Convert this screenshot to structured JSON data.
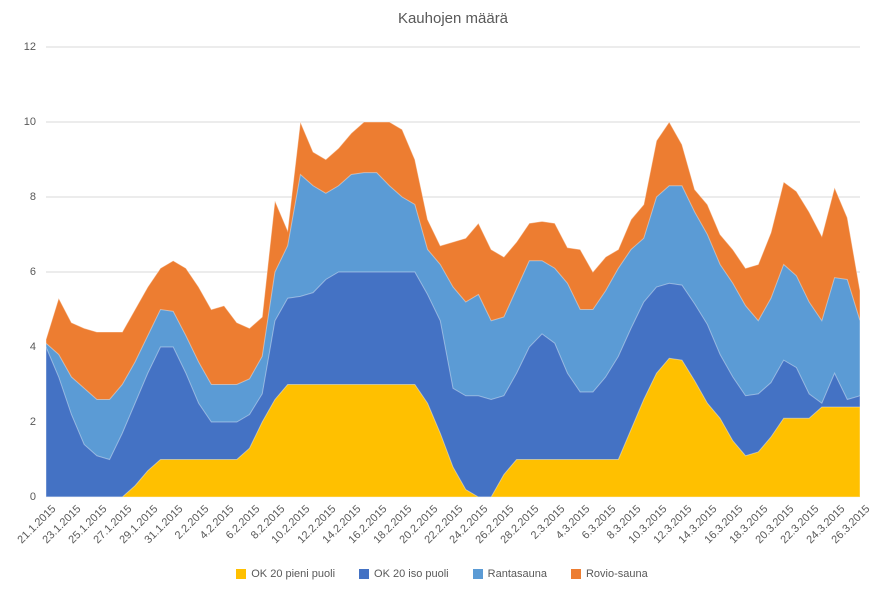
{
  "title": "Kauhojen määrä",
  "chart_data": {
    "type": "area",
    "stacked": true,
    "title": "Kauhojen määrä",
    "xlabel": "",
    "ylabel": "",
    "ylim": [
      0,
      12
    ],
    "yticks": [
      0,
      2,
      4,
      6,
      8,
      10,
      12
    ],
    "grid": true,
    "legend_position": "bottom",
    "x_label_every": 2,
    "x": [
      "21.1.2015",
      "22.1.2015",
      "23.1.2015",
      "24.1.2015",
      "25.1.2015",
      "26.1.2015",
      "27.1.2015",
      "28.1.2015",
      "29.1.2015",
      "30.1.2015",
      "31.1.2015",
      "1.2.2015",
      "2.2.2015",
      "3.2.2015",
      "4.2.2015",
      "5.2.2015",
      "6.2.2015",
      "7.2.2015",
      "8.2.2015",
      "9.2.2015",
      "10.2.2015",
      "11.2.2015",
      "12.2.2015",
      "13.2.2015",
      "14.2.2015",
      "15.2.2015",
      "16.2.2015",
      "17.2.2015",
      "18.2.2015",
      "19.2.2015",
      "20.2.2015",
      "21.2.2015",
      "22.2.2015",
      "23.2.2015",
      "24.2.2015",
      "25.2.2015",
      "26.2.2015",
      "27.2.2015",
      "28.2.2015",
      "1.3.2015",
      "2.3.2015",
      "3.3.2015",
      "4.3.2015",
      "5.3.2015",
      "6.3.2015",
      "7.3.2015",
      "8.3.2015",
      "9.3.2015",
      "10.3.2015",
      "11.3.2015",
      "12.3.2015",
      "13.3.2015",
      "14.3.2015",
      "15.3.2015",
      "16.3.2015",
      "17.3.2015",
      "18.3.2015",
      "19.3.2015",
      "20.3.2015",
      "21.3.2015",
      "22.3.2015",
      "23.3.2015",
      "24.3.2015",
      "25.3.2015",
      "26.3.2015"
    ],
    "series": [
      {
        "name": "OK 20 pieni puoli",
        "color": "#FFC000",
        "values": [
          0,
          0,
          0,
          0,
          0,
          0,
          0,
          0.3,
          0.7,
          1,
          1,
          1,
          1,
          1,
          1,
          1,
          1.3,
          2,
          2.6,
          3,
          3,
          3,
          3,
          3,
          3,
          3,
          3,
          3,
          3,
          3,
          2.5,
          1.7,
          0.8,
          0.2,
          0,
          0,
          0.6,
          1,
          1,
          1,
          1,
          1,
          1,
          1,
          1,
          1,
          1.8,
          2.6,
          3.3,
          3.7,
          3.65,
          3.1,
          2.5,
          2.1,
          1.5,
          1.1,
          1.2,
          1.6,
          2.1,
          2.1,
          2.1,
          2.4,
          2.4,
          2.4,
          2.4
        ]
      },
      {
        "name": "OK 20 iso puoli",
        "color": "#4472C4",
        "values": [
          4,
          3.2,
          2.2,
          1.4,
          1.1,
          1,
          1.7,
          2.2,
          2.6,
          3,
          3,
          2.3,
          1.5,
          1,
          1,
          1,
          0.9,
          0.75,
          2.1,
          2.3,
          2.35,
          2.45,
          2.8,
          3,
          3,
          3,
          3,
          3,
          3,
          3,
          2.9,
          3,
          2.1,
          2.5,
          2.7,
          2.6,
          2.1,
          2.3,
          3,
          3.35,
          3.1,
          2.3,
          1.8,
          1.8,
          2.2,
          2.75,
          2.7,
          2.6,
          2.3,
          2,
          2,
          2.05,
          2.1,
          1.7,
          1.7,
          1.6,
          1.55,
          1.45,
          1.55,
          1.35,
          0.65,
          0.1,
          0.9,
          0.2,
          0.3
        ]
      },
      {
        "name": "Rantasauna",
        "color": "#5B9BD5",
        "values": [
          0.1,
          0.6,
          1,
          1.5,
          1.5,
          1.6,
          1.3,
          1.1,
          1,
          1,
          0.95,
          1,
          1.1,
          1,
          1,
          1,
          0.95,
          1,
          1.3,
          1.4,
          3.25,
          2.85,
          2.3,
          2.3,
          2.6,
          2.65,
          2.65,
          2.3,
          2,
          1.8,
          1.2,
          1.5,
          2.7,
          2.5,
          2.7,
          2.1,
          2.1,
          2.25,
          2.3,
          1.95,
          2,
          2.4,
          2.2,
          2.2,
          2.3,
          2.35,
          2.1,
          1.7,
          2.4,
          2.6,
          2.65,
          2.45,
          2.4,
          2.4,
          2.5,
          2.4,
          1.95,
          2.25,
          2.55,
          2.45,
          2.45,
          2.2,
          2.55,
          3.2,
          2
        ]
      },
      {
        "name": "Rovio-sauna",
        "color": "#ED7D31",
        "values": [
          0.1,
          1.5,
          1.45,
          1.6,
          1.8,
          1.8,
          1.4,
          1.4,
          1.3,
          1.1,
          1.35,
          1.8,
          2,
          2,
          2.1,
          1.65,
          1.35,
          1.05,
          1.9,
          0.4,
          1.4,
          0.9,
          0.9,
          1,
          1.1,
          1.35,
          1.35,
          1.7,
          1.8,
          1.2,
          0.8,
          0.5,
          1.2,
          1.7,
          1.9,
          1.9,
          1.6,
          1.25,
          1,
          1.05,
          1.2,
          0.95,
          1.6,
          1,
          0.9,
          0.5,
          0.8,
          0.9,
          1.5,
          1.7,
          1.1,
          0.6,
          0.8,
          0.8,
          0.9,
          1,
          1.5,
          1.75,
          2.2,
          2.25,
          2.4,
          2.25,
          2.4,
          1.65,
          0.8
        ]
      }
    ]
  },
  "colors": {
    "text": "#595959",
    "gridline": "#D9D9D9",
    "axis_line": "#C9C9C9",
    "background": "#FFFFFF"
  }
}
